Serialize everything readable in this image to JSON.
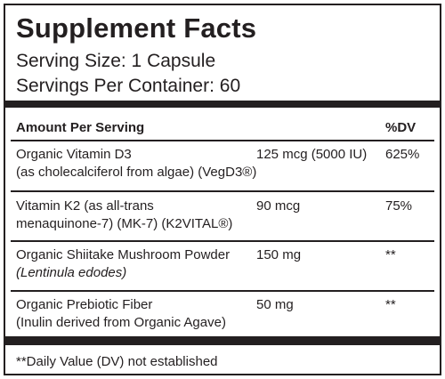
{
  "title": "Supplement Facts",
  "serving_size": "Serving Size: 1 Capsule",
  "servings_per_container": "Servings Per Container: 60",
  "table": {
    "header": [
      "Amount Per Serving",
      "%DV"
    ],
    "rows": [
      {
        "name": [
          "Organic Vitamin D3",
          "(as cholecalciferol from algae) (VegD3®)"
        ],
        "amount": "125 mcg (5000 IU)",
        "dv": "625%"
      },
      {
        "name": [
          "Vitamin K2 (as all-trans",
          "menaquinone-7) (MK-7) (K2VITAL®)"
        ],
        "amount": "90 mcg",
        "dv": "75%"
      },
      {
        "name": [
          "Organic Shiitake Mushroom Powder",
          "(Lentinula edodes)"
        ],
        "amount": "150 mg",
        "dv": "**"
      },
      {
        "name": [
          "Organic Prebiotic Fiber",
          "(Inulin derived from Organic Agave)"
        ],
        "amount": "50 mg",
        "dv": "**"
      }
    ]
  },
  "footnote": "**Daily Value (DV) not established"
}
